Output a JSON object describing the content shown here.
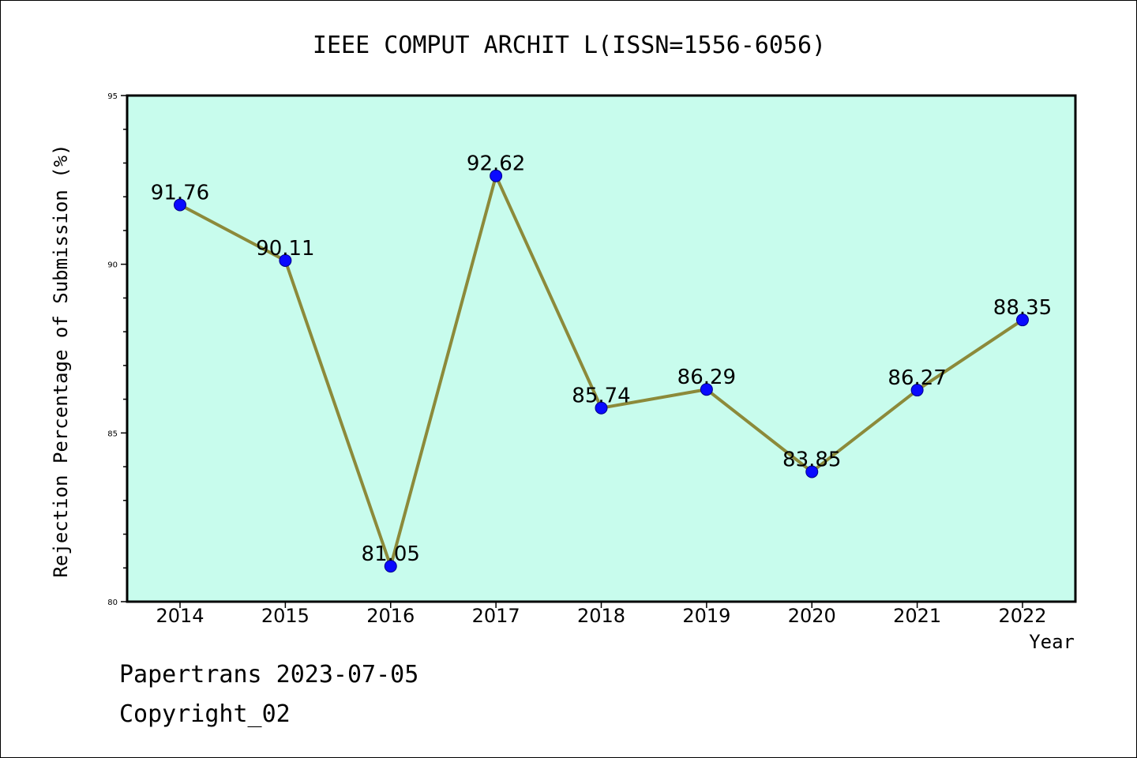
{
  "chart_data": {
    "type": "line",
    "title": "IEEE COMPUT ARCHIT L(ISSN=1556-6056)",
    "xlabel": "Year",
    "ylabel": "Rejection Percentage of Submission (%)",
    "categories": [
      "2014",
      "2015",
      "2016",
      "2017",
      "2018",
      "2019",
      "2020",
      "2021",
      "2022"
    ],
    "values": [
      91.76,
      90.11,
      81.05,
      92.62,
      85.74,
      86.29,
      83.85,
      86.27,
      88.35
    ],
    "value_labels": [
      "91.76",
      "90.11",
      "81.05",
      "92.62",
      "85.74",
      "86.29",
      "83.85",
      "86.27",
      "88.35"
    ],
    "ylim": [
      80,
      95
    ],
    "yticks": [
      "80",
      "85",
      "90",
      "95"
    ],
    "grid": false,
    "legend": "none",
    "colors": {
      "plot_background": "#c8fced",
      "line": "#8c8a3a",
      "marker": "#0a0aff",
      "axis": "#000000"
    }
  },
  "footer": {
    "line1": "Papertrans 2023-07-05",
    "line2": "Copyright_02"
  }
}
